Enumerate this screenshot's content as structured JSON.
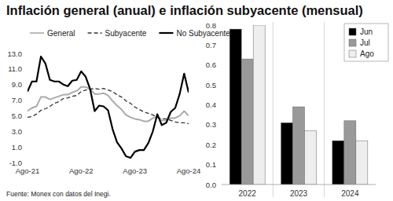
{
  "title": "Inflación general (anual) e inflación subyacente (mensual)",
  "source": "Fuente: Monex con datos del Inegi.",
  "chart_data": [
    {
      "type": "line",
      "categories": [
        "Ago-21",
        null,
        null,
        null,
        null,
        null,
        null,
        null,
        null,
        null,
        null,
        null,
        "Ago-22",
        null,
        null,
        null,
        null,
        null,
        null,
        null,
        null,
        null,
        null,
        null,
        "Ago-23",
        null,
        null,
        null,
        null,
        null,
        null,
        null,
        null,
        null,
        null,
        null,
        "Ago-24"
      ],
      "series": [
        {
          "name": "General",
          "color": "#aaaaaa",
          "line_style": "solid",
          "values": [
            5.6,
            6.0,
            6.2,
            7.4,
            7.4,
            7.1,
            7.3,
            7.5,
            7.7,
            7.7,
            8.0,
            8.2,
            8.7,
            8.7,
            8.4,
            7.8,
            7.8,
            7.9,
            7.6,
            6.9,
            6.3,
            5.8,
            5.1,
            4.8,
            4.6,
            4.5,
            4.3,
            4.3,
            4.7,
            4.9,
            4.4,
            4.4,
            4.7,
            4.7,
            5.0,
            5.6,
            5.0
          ]
        },
        {
          "name": "Subyacente",
          "color": "#333333",
          "line_style": "dashed",
          "values": [
            4.8,
            4.9,
            5.2,
            5.7,
            5.9,
            6.2,
            6.6,
            6.8,
            7.2,
            7.3,
            7.5,
            7.6,
            8.1,
            8.3,
            8.4,
            8.5,
            8.4,
            8.5,
            8.3,
            8.1,
            7.7,
            7.4,
            6.9,
            6.6,
            6.1,
            5.8,
            5.5,
            5.3,
            5.1,
            4.8,
            4.6,
            4.6,
            4.4,
            4.2,
            4.1,
            4.1,
            4.0
          ]
        },
        {
          "name": "No Subyacente",
          "color": "#000000",
          "line_style": "solid",
          "values": [
            8.1,
            9.4,
            9.4,
            12.6,
            11.7,
            9.6,
            9.4,
            9.4,
            9.0,
            8.8,
            9.5,
            9.6,
            10.7,
            10.0,
            8.4,
            5.6,
            6.3,
            6.2,
            5.7,
            3.3,
            1.6,
            0.8,
            -0.2,
            -0.4,
            0.4,
            0.6,
            0.6,
            1.5,
            3.0,
            5.2,
            3.8,
            4.1,
            5.5,
            6.0,
            7.8,
            10.4,
            8.0
          ]
        }
      ],
      "ylim": [
        -1,
        13
      ],
      "yticks": [
        {
          "value": -1,
          "label": "-1.0"
        },
        {
          "value": 1,
          "label": "1.0"
        },
        {
          "value": 3,
          "label": "3.0"
        },
        {
          "value": 5,
          "label": "5.0"
        },
        {
          "value": 7,
          "label": "7.0"
        },
        {
          "value": 9,
          "label": "9.0"
        },
        {
          "value": 11,
          "label": "11.0"
        },
        {
          "value": 13,
          "label": "13.0"
        }
      ],
      "legend": "top",
      "grid": false
    },
    {
      "type": "bar",
      "categories": [
        "2022",
        "2023",
        "2024"
      ],
      "series": [
        {
          "name": "Jun",
          "color": "#000000",
          "values": [
            0.78,
            0.31,
            0.22
          ]
        },
        {
          "name": "Jul",
          "color": "#999999",
          "values": [
            0.63,
            0.39,
            0.32
          ]
        },
        {
          "name": "Ago",
          "color": "#eeeeee",
          "values": [
            0.8,
            0.27,
            0.22
          ]
        }
      ],
      "ylim": [
        0,
        0.8
      ],
      "yticks": [
        {
          "value": 0,
          "label": "0.0"
        },
        0.1,
        0.2,
        0.3,
        0.4,
        0.5,
        0.6,
        0.7,
        0.8
      ],
      "legend": "top-right",
      "grid": false
    }
  ]
}
